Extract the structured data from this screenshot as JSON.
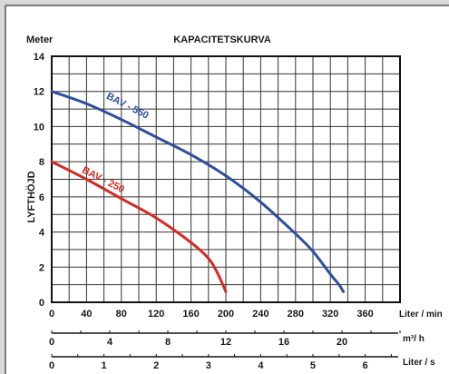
{
  "chart_data": {
    "type": "line",
    "title": "KAPACITETSKURVA",
    "ylabel_unit": "Meter",
    "ylabel": "LYFTHÖJD",
    "xlabel": "Liter / min",
    "ylim": [
      0,
      14
    ],
    "xlim": [
      0,
      400
    ],
    "grid": true,
    "y_ticks": [
      "0",
      "2",
      "4",
      "6",
      "8",
      "10",
      "12",
      "14"
    ],
    "x_ticks": [
      "0",
      "40",
      "80",
      "120",
      "160",
      "200",
      "240",
      "280",
      "320",
      "360"
    ],
    "secondary_axes": [
      {
        "label": "m³/ h",
        "ticks": [
          {
            "v": 0,
            "label": "0"
          },
          {
            "v": 4,
            "label": "4"
          },
          {
            "v": 8,
            "label": "8"
          },
          {
            "v": 12,
            "label": "12"
          },
          {
            "v": 16,
            "label": "16"
          },
          {
            "v": 20,
            "label": "20"
          }
        ],
        "minor_step": 2,
        "max": 24
      },
      {
        "label": "Liter / s",
        "ticks": [
          {
            "v": 0,
            "label": "0"
          },
          {
            "v": 1,
            "label": "1"
          },
          {
            "v": 2,
            "label": "2"
          },
          {
            "v": 3,
            "label": "3"
          },
          {
            "v": 4,
            "label": "4"
          },
          {
            "v": 5,
            "label": "5"
          },
          {
            "v": 6,
            "label": "6"
          }
        ],
        "minor_step": 0.5,
        "max": 6.6667
      }
    ],
    "series": [
      {
        "name": "BAV - 550",
        "color": "#2c4f9e",
        "x": [
          0,
          40,
          80,
          120,
          160,
          200,
          240,
          280,
          300,
          320,
          330,
          335
        ],
        "y": [
          12,
          11.3,
          10.4,
          9.4,
          8.4,
          7.2,
          5.7,
          3.9,
          2.9,
          1.6,
          1.0,
          0.6
        ]
      },
      {
        "name": "BAV - 250",
        "color": "#d42a24",
        "x": [
          0,
          40,
          80,
          120,
          160,
          180,
          190,
          200
        ],
        "y": [
          8,
          7.0,
          5.9,
          4.8,
          3.4,
          2.5,
          1.7,
          0.6
        ]
      }
    ]
  }
}
